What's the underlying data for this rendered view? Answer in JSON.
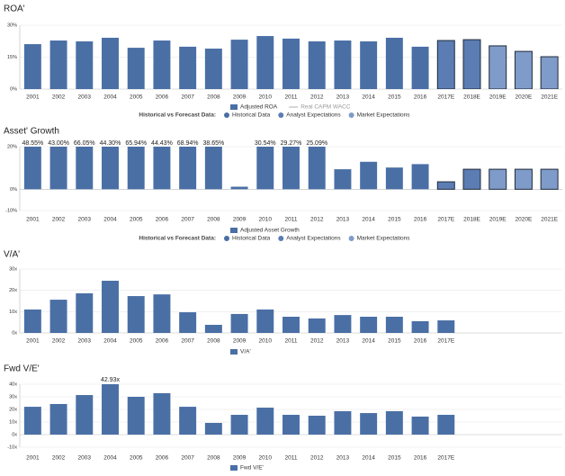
{
  "chart_data": [
    {
      "type": "bar",
      "title": "ROA'",
      "categories": [
        "2001",
        "2002",
        "2003",
        "2004",
        "2005",
        "2006",
        "2007",
        "2008",
        "2009",
        "2010",
        "2011",
        "2012",
        "2013",
        "2014",
        "2015",
        "2016",
        "2017E",
        "2018E",
        "2019E",
        "2020E",
        "2021E"
      ],
      "series": [
        {
          "name": "Adjusted ROA",
          "color": "#4a6fa5",
          "values": [
            21.1,
            22.8,
            22.4,
            24.1,
            19.4,
            22.8,
            19.9,
            19.0,
            23.2,
            24.9,
            23.7,
            22.4,
            22.8,
            22.4,
            24.1,
            19.9,
            22.8,
            23.2,
            20.3,
            17.7,
            15.2
          ]
        }
      ],
      "bar_colors": [
        "#4a6fa5",
        "#4a6fa5",
        "#4a6fa5",
        "#4a6fa5",
        "#4a6fa5",
        "#4a6fa5",
        "#4a6fa5",
        "#4a6fa5",
        "#4a6fa5",
        "#4a6fa5",
        "#4a6fa5",
        "#4a6fa5",
        "#4a6fa5",
        "#4a6fa5",
        "#4a6fa5",
        "#4a6fa5",
        "#5b7db3",
        "#5b7db3",
        "#7f9bc9",
        "#7f9bc9",
        "#7f9bc9"
      ],
      "bar_edges": [
        null,
        null,
        null,
        null,
        null,
        null,
        null,
        null,
        null,
        null,
        null,
        null,
        null,
        null,
        null,
        null,
        "#1f2a3a",
        "#1f2a3a",
        "#1f2a3a",
        "#1f2a3a",
        "#1f2a3a"
      ],
      "reference_line": {
        "name": "Real CAPM WACC",
        "color": "#c8c8c8"
      },
      "forecast_legend": {
        "title": "Historical vs Forecast Data:",
        "items": [
          {
            "name": "Historical Data",
            "color": "#4a6fa5"
          },
          {
            "name": "Analyst Expectations",
            "color": "#5b7db3"
          },
          {
            "name": "Market Expectations",
            "color": "#7f9bc9"
          }
        ]
      },
      "ylim": [
        0,
        30
      ],
      "yticks": [
        {
          "value": 0,
          "label": "0%"
        },
        {
          "value": 15,
          "label": "15%"
        },
        {
          "value": 30,
          "label": "30%"
        }
      ],
      "grid": true
    },
    {
      "type": "bar",
      "title": "Asset' Growth",
      "categories": [
        "2001",
        "2002",
        "2003",
        "2004",
        "2005",
        "2006",
        "2007",
        "2008",
        "2009",
        "2010",
        "2011",
        "2012",
        "2013",
        "2014",
        "2015",
        "2016",
        "2017E",
        "2018E",
        "2019E",
        "2020E",
        "2021E"
      ],
      "series": [
        {
          "name": "Adjusted Asset Growth",
          "color": "#4a6fa5",
          "values": [
            48.55,
            43.0,
            66.05,
            44.3,
            65.94,
            44.43,
            68.94,
            38.65,
            1.2,
            30.54,
            29.27,
            25.09,
            9.4,
            12.9,
            10.2,
            11.8,
            3.5,
            9.4,
            9.4,
            9.4,
            9.4
          ],
          "value_labels": [
            "48.55%",
            "43.00%",
            "66.05%",
            "44.30%",
            "65.94%",
            "44.43%",
            "68.94%",
            "38.65%",
            null,
            "30.54%",
            "29.27%",
            "25.09%",
            null,
            null,
            null,
            null,
            null,
            null,
            null,
            null,
            null
          ]
        }
      ],
      "bar_colors": [
        "#4a6fa5",
        "#4a6fa5",
        "#4a6fa5",
        "#4a6fa5",
        "#4a6fa5",
        "#4a6fa5",
        "#4a6fa5",
        "#4a6fa5",
        "#4a6fa5",
        "#4a6fa5",
        "#4a6fa5",
        "#4a6fa5",
        "#4a6fa5",
        "#4a6fa5",
        "#4a6fa5",
        "#4a6fa5",
        "#5b7db3",
        "#5b7db3",
        "#7f9bc9",
        "#7f9bc9",
        "#7f9bc9"
      ],
      "bar_edges": [
        null,
        null,
        null,
        null,
        null,
        null,
        null,
        null,
        null,
        null,
        null,
        null,
        null,
        null,
        null,
        null,
        "#1f2a3a",
        "#1f2a3a",
        "#1f2a3a",
        "#1f2a3a",
        "#1f2a3a"
      ],
      "forecast_legend": {
        "title": "Historical vs Forecast Data:",
        "items": [
          {
            "name": "Historical Data",
            "color": "#4a6fa5"
          },
          {
            "name": "Analyst Expectations",
            "color": "#5b7db3"
          },
          {
            "name": "Market Expectations",
            "color": "#7f9bc9"
          }
        ]
      },
      "ylim": [
        -10,
        20
      ],
      "yticks": [
        {
          "value": -10,
          "label": "-10%"
        },
        {
          "value": 0,
          "label": "0%"
        },
        {
          "value": 20,
          "label": "20%"
        }
      ],
      "grid": true
    },
    {
      "type": "bar",
      "title": "V/A'",
      "categories": [
        "2001",
        "2002",
        "2003",
        "2004",
        "2005",
        "2006",
        "2007",
        "2008",
        "2009",
        "2010",
        "2011",
        "2012",
        "2013",
        "2014",
        "2015",
        "2016",
        "2017E"
      ],
      "series": [
        {
          "name": "V/A'",
          "color": "#4a6fa5",
          "values": [
            11,
            15.6,
            18.6,
            24.5,
            17.3,
            18.1,
            9.7,
            3.8,
            8.9,
            11,
            7.6,
            6.8,
            8.4,
            7.6,
            7.6,
            5.5,
            5.9
          ]
        }
      ],
      "ylim": [
        0,
        30
      ],
      "yticks": [
        {
          "value": 0,
          "label": "0x"
        },
        {
          "value": 10,
          "label": "10x"
        },
        {
          "value": 20,
          "label": "20x"
        },
        {
          "value": 30,
          "label": "30x"
        }
      ],
      "grid": true
    },
    {
      "type": "bar",
      "title": "Fwd V/E'",
      "categories": [
        "2001",
        "2002",
        "2003",
        "2004",
        "2005",
        "2006",
        "2007",
        "2008",
        "2009",
        "2010",
        "2011",
        "2012",
        "2013",
        "2014",
        "2015",
        "2016",
        "2017E"
      ],
      "series": [
        {
          "name": "Fwd V/E'",
          "color": "#4a6fa5",
          "values": [
            22.1,
            24.3,
            31.4,
            42.93,
            30,
            32.9,
            22.1,
            9.3,
            15.7,
            21.4,
            15.7,
            15,
            18.6,
            17.1,
            18.6,
            14.3,
            15.7
          ],
          "value_labels": [
            null,
            null,
            null,
            "42.93x",
            null,
            null,
            null,
            null,
            null,
            null,
            null,
            null,
            null,
            null,
            null,
            null,
            null
          ]
        }
      ],
      "ylim": [
        -10,
        40
      ],
      "yticks": [
        {
          "value": -10,
          "label": "-10x"
        },
        {
          "value": 0,
          "label": "0x"
        },
        {
          "value": 10,
          "label": "10x"
        },
        {
          "value": 20,
          "label": "20x"
        },
        {
          "value": 30,
          "label": "30x"
        },
        {
          "value": 40,
          "label": "40x"
        }
      ],
      "grid": true
    }
  ]
}
